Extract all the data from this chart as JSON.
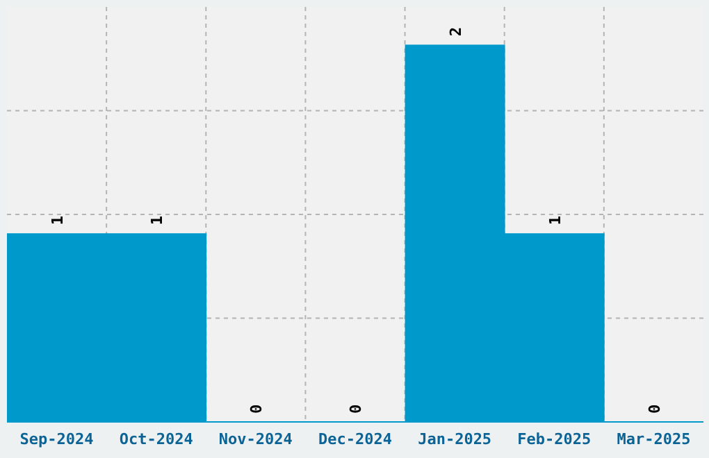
{
  "chart_data": {
    "type": "bar",
    "categories": [
      "Sep-2024",
      "Oct-2024",
      "Nov-2024",
      "Dec-2024",
      "Jan-2025",
      "Feb-2025",
      "Mar-2025"
    ],
    "values": [
      1,
      1,
      0,
      0,
      2,
      1,
      0
    ],
    "color": "#0099cc",
    "ylim": [
      0,
      2.2
    ],
    "tick_labels": "x",
    "grid": true,
    "data_labels": true
  }
}
